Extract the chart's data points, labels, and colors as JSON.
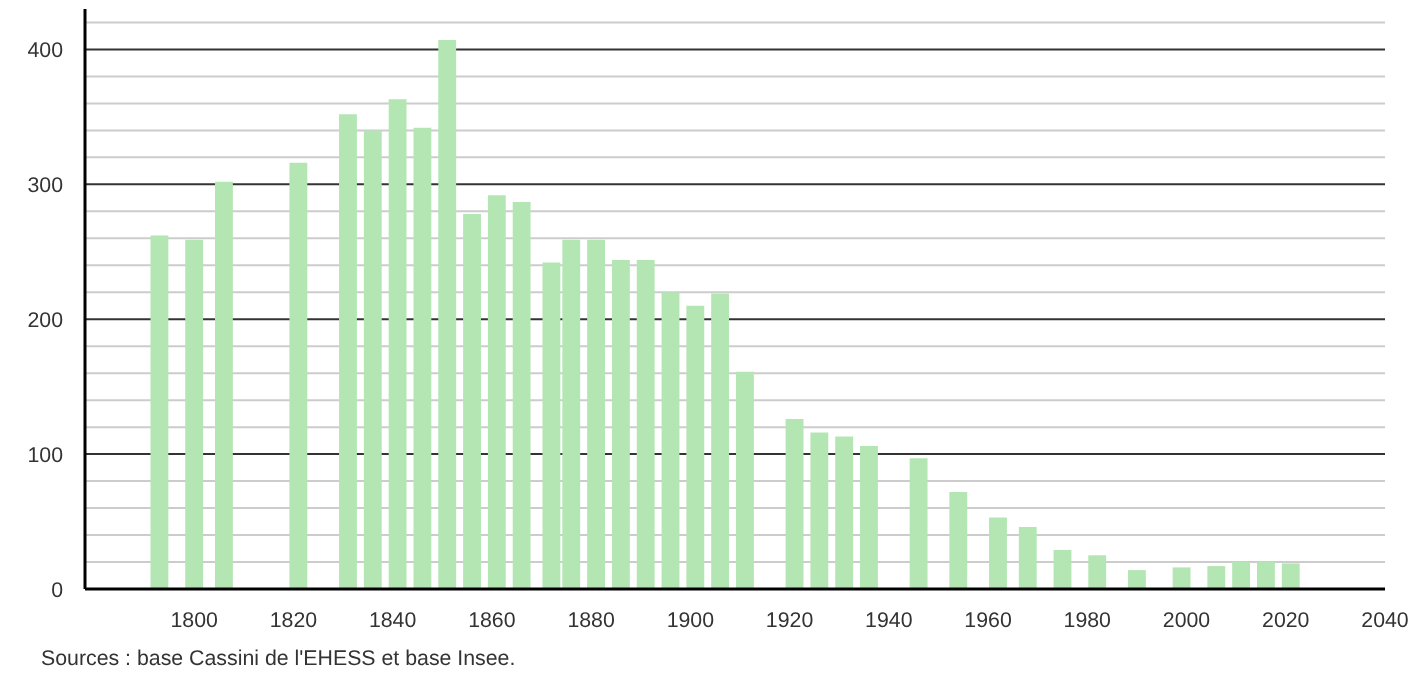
{
  "chart_data": {
    "type": "bar",
    "x": [
      1793,
      1800,
      1806,
      1821,
      1831,
      1836,
      1841,
      1846,
      1851,
      1856,
      1861,
      1866,
      1872,
      1876,
      1881,
      1886,
      1891,
      1896,
      1901,
      1906,
      1911,
      1921,
      1926,
      1931,
      1936,
      1946,
      1954,
      1962,
      1968,
      1975,
      1982,
      1990,
      1999,
      2006,
      2011,
      2016,
      2021
    ],
    "values": [
      262,
      259,
      302,
      316,
      352,
      340,
      363,
      342,
      407,
      278,
      292,
      287,
      242,
      259,
      259,
      244,
      244,
      220,
      210,
      219,
      161,
      126,
      116,
      113,
      106,
      97,
      72,
      53,
      46,
      29,
      25,
      14,
      16,
      17,
      20,
      20,
      19
    ],
    "color": "#b3e6b3",
    "xlim": [
      1778,
      2040
    ],
    "xticks": [
      1800,
      1820,
      1840,
      1860,
      1880,
      1900,
      1920,
      1940,
      1960,
      1980,
      2000,
      2020,
      2040
    ],
    "ylim": [
      0,
      430
    ],
    "yticks": [
      0,
      {
        "value": 20,
        "label": null
      },
      {
        "value": 40,
        "label": null
      },
      {
        "value": 60,
        "label": null
      },
      {
        "value": 80,
        "label": null
      },
      100,
      {
        "value": 120,
        "label": null
      },
      {
        "value": 140,
        "label": null
      },
      {
        "value": 160,
        "label": null
      },
      {
        "value": 180,
        "label": null
      },
      200,
      {
        "value": 220,
        "label": null
      },
      {
        "value": 240,
        "label": null
      },
      {
        "value": 260,
        "label": null
      },
      {
        "value": 280,
        "label": null
      },
      300,
      {
        "value": 320,
        "label": null
      },
      {
        "value": 340,
        "label": null
      },
      {
        "value": 360,
        "label": null
      },
      {
        "value": 380,
        "label": null
      },
      400,
      {
        "value": 420,
        "label": null
      }
    ],
    "grid": "y",
    "annotations": [
      "Sources : base Cassini de l'EHESS et base Insee."
    ]
  }
}
